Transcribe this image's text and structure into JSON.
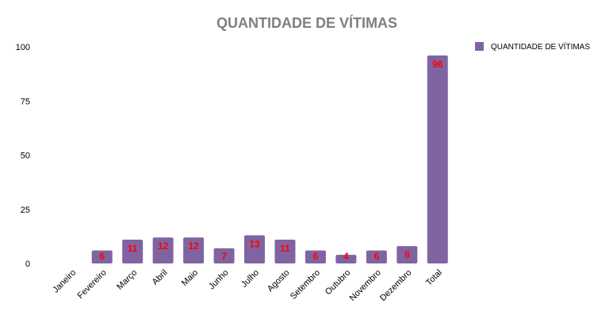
{
  "chart_data": {
    "type": "bar",
    "title": "QUANTIDADE DE VÍTIMAS",
    "xlabel": "",
    "ylabel": "",
    "categories": [
      "Janeiro",
      "Fevereiro",
      "Março",
      "Abril",
      "Maio",
      "Junho",
      "Julho",
      "Agosto",
      "Setembro",
      "Outubro",
      "Novembro",
      "Dezembro",
      "Total"
    ],
    "series": [
      {
        "name": "QUANTIDADE DE VÍTIMAS",
        "values": [
          0,
          6,
          11,
          12,
          12,
          7,
          13,
          11,
          6,
          4,
          6,
          8,
          96
        ],
        "data_labels": [
          "",
          "6",
          "11",
          "12",
          "12",
          "7",
          "13",
          "11",
          "6",
          "4",
          "6",
          "8",
          "96"
        ],
        "color": "#8064a2"
      }
    ],
    "yticks": [
      "0",
      "25",
      "50",
      "75",
      "100"
    ],
    "ylim": [
      0,
      100
    ],
    "grid": false,
    "legend_position": "top-right",
    "data_label_color": "#ff0000",
    "title_color": "#7f7f7f"
  }
}
